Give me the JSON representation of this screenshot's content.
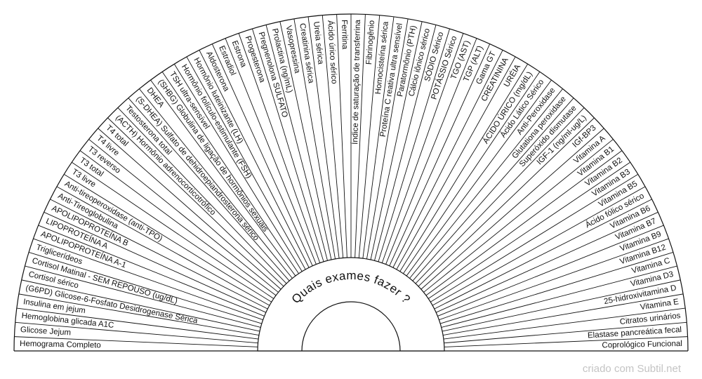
{
  "title": "Quais exames fazer ?",
  "credit": "criado com Subtil.net",
  "colors": {
    "line": "#111111",
    "background": "#ffffff",
    "credit": "#c4c4c4"
  },
  "items": [
    "Hemograma Completo",
    "Glicose Jejum",
    "Hemoglobina glicada A1C",
    "Insulina em jejum",
    "(G6PD) Glicose-6-Fosfato Desidrogenase  Sérica",
    "Cortisol sérico",
    "Cortisol Matinal - SEM REPOUSO (ug/dL)",
    "Triglicerídeos",
    "APOLIPOPROTEÍNA A-1",
    "LIPOPROTEÍNA A",
    "APOLIPOPROTEÍNA B",
    "Anti-Tireoglobulina",
    "Anti-tireoperoxidase (anti-TPO)",
    "T3 livre",
    "T3 total",
    "T3 reverso",
    "T4 livre",
    "T4 total",
    "(ACTH) Hormônio adrenocorticotrófico",
    "Testosterona total",
    "(S-DHEA) Sulfato de dehidroepiandrosterona sérico",
    "DHEA",
    "(SHBG) Globulina de ligação de hormônios sexuais",
    "TSH ultra-sensível",
    "Hormônio folículo-estimulante (FSH)",
    "Hormônio luteinizante (LH)",
    "Aldosterona",
    "Estradiol",
    "Estrona",
    "Progesterona",
    "Pregnenolona SULFATO",
    "Prolactina (ng/mL)",
    "Vasopressina",
    "Creatinina sérica",
    "Ureia sérica",
    "Ácido úrico sérico",
    "Ferritina",
    "Índice de saturação de transferrina",
    "Fibrinogênio",
    "Homocisteína sérica",
    "Proteína C reativa ultra sensível",
    "Paratormônio (PTH)",
    "Cálcio iônico sérico",
    "SÓDIO Sérico",
    "POTÁSSIO Sérico",
    "TGO (AST)",
    "TGP (ALT)",
    "Gama GT",
    "CREATININA",
    "URÉIA",
    "ÁCIDO ÚRICO (mg/dL)",
    "Ácido Lático Sérico",
    "Anti-Peroxidase",
    "Glutationa peroxidase",
    "Superóxido dismutase",
    "IGF-1 (ng/ml-ug/L)",
    "IGf-BP3",
    "Vitamina A",
    "Vitamina B1",
    "Vitamina B2",
    "Vitamina B3",
    "Vitamina B5",
    "Ácido fólico sérico",
    "Vitamina B6",
    "Vitamina B7",
    "Vitamina B9",
    "Vitamina B12",
    "Vitamina C",
    "Vitamina D3",
    "25-hidroxivitamina D",
    "Vitamina E",
    "Citratos urinários",
    "Elastase pancreática fecal",
    "Coprológico Funcional"
  ]
}
